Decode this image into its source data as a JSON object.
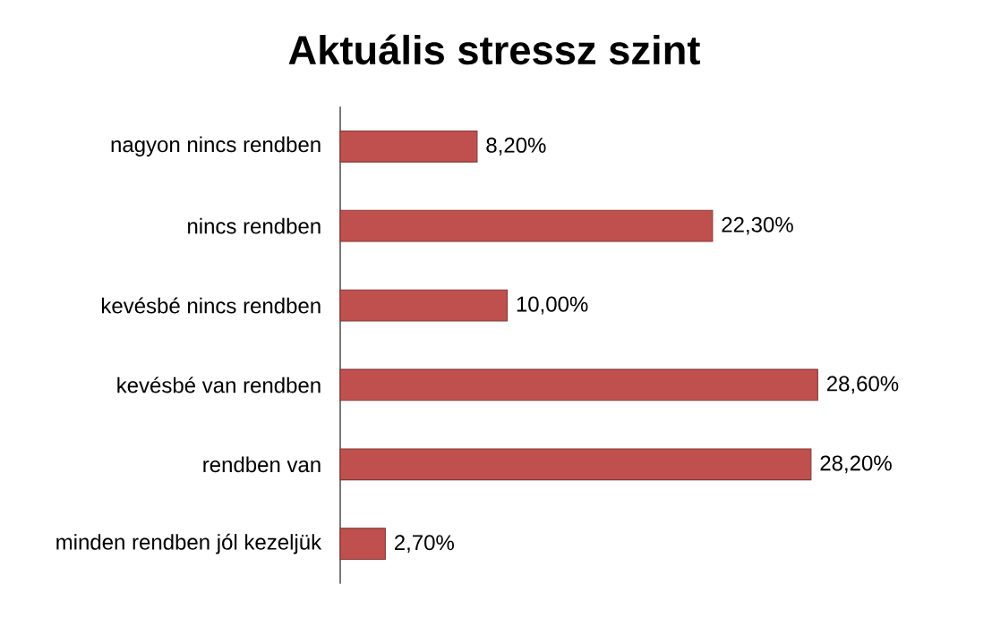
{
  "chart_data": {
    "type": "bar",
    "orientation": "horizontal",
    "title": "Aktuális stressz szint",
    "categories": [
      "nagyon nincs rendben",
      "nincs rendben",
      "kevésbé nincs rendben",
      "kevésbé van rendben",
      "rendben van",
      "minden rendben jól kezeljük"
    ],
    "values": [
      8.2,
      22.3,
      10.0,
      28.6,
      28.2,
      2.7
    ],
    "value_labels": [
      "8,20%",
      "22,30%",
      "10,00%",
      "28,60%",
      "28,20%",
      "2,70%"
    ],
    "color": "#c0504d"
  }
}
